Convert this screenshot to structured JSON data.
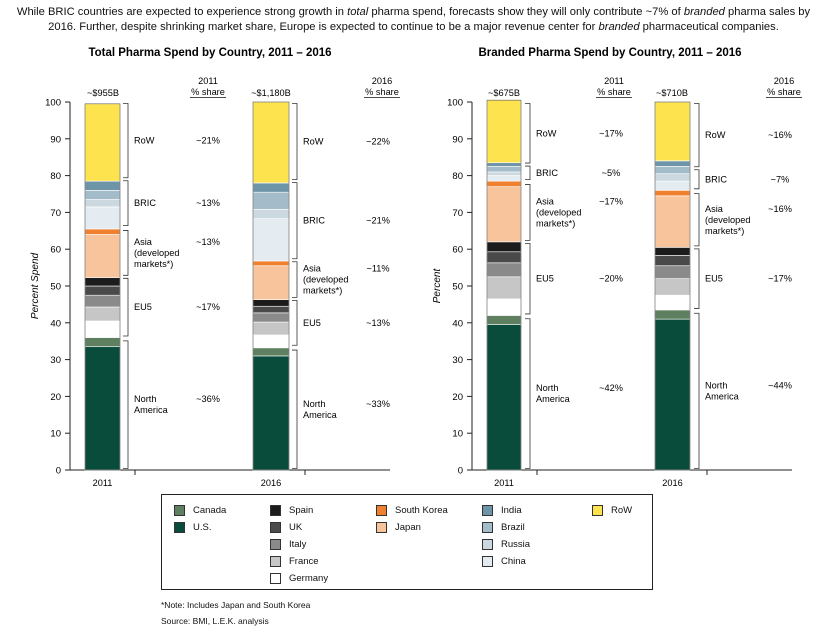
{
  "intro": {
    "p1": "While BRIC countries are expected to experience strong growth in ",
    "i1": "total",
    "p2": " pharma spend, forecasts show they will only contribute ~7% of ",
    "i2": "branded",
    "p3": " pharma sales by 2016. Further, despite shrinking market share, Europe is expected to continue to be a major revenue center for ",
    "i3": "branded",
    "p4": " pharmaceutical companies."
  },
  "colors": {
    "Canada": "#5e8060",
    "U.S.": "#0a4c3c",
    "Spain": "#1c1c1c",
    "UK": "#4a4a4a",
    "Italy": "#8a8a8a",
    "France": "#c6c6c6",
    "Germany": "#ffffff",
    "South Korea": "#ee8030",
    "Japan": "#f8c49c",
    "India": "#6e94a8",
    "Brazil": "#a4bcca",
    "Russia": "#ccd8e0",
    "China": "#e4ecf2",
    "RoW": "#fde34e"
  },
  "chart_data": [
    {
      "type": "bar",
      "stacked": true,
      "title": "Total Pharma Spend by Country, 2011 – 2016",
      "ylabel": "Percent Spend",
      "ylim": [
        0,
        100
      ],
      "yticks": [
        "0",
        "10",
        "20",
        "30",
        "40",
        "50",
        "60",
        "70",
        "80",
        "90",
        "100"
      ],
      "categories": [
        "2011",
        "2016"
      ],
      "totals": [
        "~$955B",
        "~$1,180B"
      ],
      "share_headers": [
        [
          "2011",
          "% share"
        ],
        [
          "2016",
          "% share"
        ]
      ],
      "series": [
        {
          "name": "U.S.",
          "values": [
            33.5,
            31
          ]
        },
        {
          "name": "Canada",
          "values": [
            2.5,
            2.2
          ]
        },
        {
          "name": "Germany",
          "values": [
            4.5,
            3.5
          ]
        },
        {
          "name": "France",
          "values": [
            3.8,
            3.5
          ]
        },
        {
          "name": "Italy",
          "values": [
            3.2,
            2.5
          ]
        },
        {
          "name": "UK",
          "values": [
            2.5,
            1.8
          ]
        },
        {
          "name": "Spain",
          "values": [
            2.3,
            1.8
          ]
        },
        {
          "name": "Japan",
          "values": [
            11.7,
            9.2
          ]
        },
        {
          "name": "South Korea",
          "values": [
            1.5,
            1.3
          ]
        },
        {
          "name": "China",
          "values": [
            6,
            11.5
          ]
        },
        {
          "name": "Russia",
          "values": [
            2,
            2.5
          ]
        },
        {
          "name": "Brazil",
          "values": [
            2.5,
            4.7
          ]
        },
        {
          "name": "India",
          "values": [
            2.5,
            2.5
          ]
        },
        {
          "name": "RoW",
          "values": [
            21,
            22
          ]
        }
      ],
      "groups": [
        [
          {
            "name": "RoW",
            "share": "~21%",
            "from": 79,
            "to": 100
          },
          {
            "name": "BRIC",
            "share": "~13%",
            "from": 66,
            "to": 79
          },
          {
            "name": "Asia\n(developed\nmarkets*)",
            "share": "~13%",
            "from": 52.5,
            "to": 65.5
          },
          {
            "name": "EU5",
            "share": "~17%",
            "from": 36,
            "to": 52.5
          },
          {
            "name": "North\nAmerica",
            "share": "~36%",
            "from": 0,
            "to": 35.5
          }
        ],
        [
          {
            "name": "RoW",
            "share": "~22%",
            "from": 78.5,
            "to": 100
          },
          {
            "name": "BRIC",
            "share": "~21%",
            "from": 57,
            "to": 78.5
          },
          {
            "name": "Asia\n(developed\nmarkets*)",
            "share": "~11%",
            "from": 46.5,
            "to": 57
          },
          {
            "name": "EU5",
            "share": "~13%",
            "from": 33.5,
            "to": 46.5
          },
          {
            "name": "North\nAmerica",
            "share": "~33%",
            "from": 0,
            "to": 33
          }
        ]
      ]
    },
    {
      "type": "bar",
      "stacked": true,
      "title": "Branded Pharma Spend by Country, 2011 – 2016",
      "ylabel": "Percent",
      "ylim": [
        0,
        100
      ],
      "yticks": [
        "0",
        "10",
        "20",
        "30",
        "40",
        "50",
        "60",
        "70",
        "80",
        "90",
        "100"
      ],
      "categories": [
        "2011",
        "2016"
      ],
      "totals": [
        "~$675B",
        "~$710B"
      ],
      "share_headers": [
        [
          "2011",
          "% share"
        ],
        [
          "2016",
          "% share"
        ]
      ],
      "series": [
        {
          "name": "U.S.",
          "values": [
            39.5,
            41
          ]
        },
        {
          "name": "Canada",
          "values": [
            2.5,
            2.5
          ]
        },
        {
          "name": "Germany",
          "values": [
            4.5,
            4
          ]
        },
        {
          "name": "France",
          "values": [
            6,
            4.5
          ]
        },
        {
          "name": "Italy",
          "values": [
            3.8,
            3.5
          ]
        },
        {
          "name": "UK",
          "values": [
            3,
            2.8
          ]
        },
        {
          "name": "Spain",
          "values": [
            2.7,
            2.2
          ]
        },
        {
          "name": "Japan",
          "values": [
            15,
            14
          ]
        },
        {
          "name": "South Korea",
          "values": [
            1.5,
            1.5
          ]
        },
        {
          "name": "China",
          "values": [
            1.5,
            2.5
          ]
        },
        {
          "name": "Russia",
          "values": [
            1,
            2
          ]
        },
        {
          "name": "Brazil",
          "values": [
            1.5,
            2
          ]
        },
        {
          "name": "India",
          "values": [
            1,
            1.5
          ]
        },
        {
          "name": "RoW",
          "values": [
            17,
            16
          ]
        }
      ],
      "groups": [
        [
          {
            "name": "RoW",
            "share": "~17%",
            "from": 83,
            "to": 100
          },
          {
            "name": "BRIC",
            "share": "~5%",
            "from": 78.5,
            "to": 83
          },
          {
            "name": "Asia\n(developed\nmarkets*)",
            "share": "~17%",
            "from": 62,
            "to": 78
          },
          {
            "name": "EU5",
            "share": "~20%",
            "from": 42,
            "to": 62
          },
          {
            "name": "North\nAmerica",
            "share": "~42%",
            "from": 0,
            "to": 41.5
          }
        ],
        [
          {
            "name": "RoW",
            "share": "~16%",
            "from": 82,
            "to": 100
          },
          {
            "name": "BRIC",
            "share": "~7%",
            "from": 76,
            "to": 82
          },
          {
            "name": "Asia\n(developed\nmarkets*)",
            "share": "~16%",
            "from": 60.5,
            "to": 75.5
          },
          {
            "name": "EU5",
            "share": "~17%",
            "from": 43.5,
            "to": 60.5
          },
          {
            "name": "North\nAmerica",
            "share": "~44%",
            "from": 0,
            "to": 43
          }
        ]
      ]
    }
  ],
  "legend": [
    [
      "Canada",
      "U.S."
    ],
    [
      "Spain",
      "UK",
      "Italy",
      "France",
      "Germany"
    ],
    [
      "South Korea",
      "Japan"
    ],
    [
      "India",
      "Brazil",
      "Russia",
      "China"
    ],
    [
      "RoW"
    ]
  ],
  "note": "*Note: Includes Japan and South Korea",
  "source": "Source:  BMI, L.E.K. analysis"
}
